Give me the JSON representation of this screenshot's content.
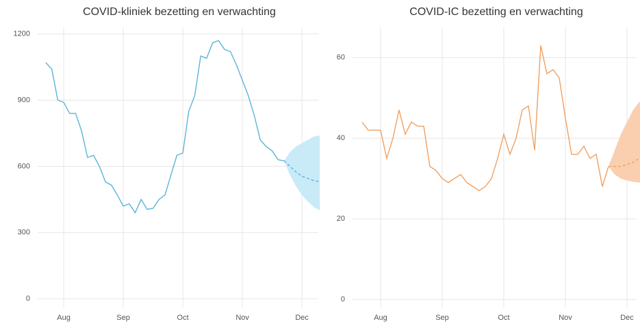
{
  "chart_data": [
    {
      "type": "line",
      "title": "COVID-kliniek bezetting en verwachting",
      "categories": [
        null,
        null,
        null,
        "Aug",
        null,
        null,
        null,
        null,
        null,
        null,
        null,
        null,
        null,
        "Sep",
        null,
        null,
        null,
        null,
        null,
        null,
        null,
        null,
        null,
        "Oct",
        null,
        null,
        null,
        null,
        null,
        null,
        null,
        null,
        null,
        "Nov",
        null,
        null,
        null,
        null,
        null,
        null,
        null,
        null,
        null,
        "Dec",
        null,
        null,
        null
      ],
      "series": [
        {
          "color": "#5ab4d8",
          "dashed": false,
          "values": [
            1070,
            1040,
            900,
            890,
            840,
            840,
            760,
            640,
            650,
            600,
            530,
            515,
            470,
            420,
            430,
            390,
            450,
            405,
            410,
            450,
            470,
            560,
            650,
            660,
            850,
            920,
            1100,
            1090,
            1160,
            1170,
            1130,
            1120,
            1060,
            990,
            920,
            830,
            720,
            690,
            670,
            630,
            625,
            null,
            null,
            null,
            null,
            null,
            null
          ]
        },
        {
          "color": "#5ab4d8",
          "dashed": true,
          "values": [
            null,
            null,
            null,
            null,
            null,
            null,
            null,
            null,
            null,
            null,
            null,
            null,
            null,
            null,
            null,
            null,
            null,
            null,
            null,
            null,
            null,
            null,
            null,
            null,
            null,
            null,
            null,
            null,
            null,
            null,
            null,
            null,
            null,
            null,
            null,
            null,
            null,
            null,
            null,
            null,
            625,
            600,
            575,
            555,
            545,
            535,
            530
          ]
        }
      ],
      "band": {
        "color": "#c8ebf7",
        "lower": [
          null,
          null,
          null,
          null,
          null,
          null,
          null,
          null,
          null,
          null,
          null,
          null,
          null,
          null,
          null,
          null,
          null,
          null,
          null,
          null,
          null,
          null,
          null,
          null,
          null,
          null,
          null,
          null,
          null,
          null,
          null,
          null,
          null,
          null,
          null,
          null,
          null,
          null,
          null,
          null,
          625,
          560,
          510,
          470,
          440,
          415,
          400
        ],
        "upper": [
          null,
          null,
          null,
          null,
          null,
          null,
          null,
          null,
          null,
          null,
          null,
          null,
          null,
          null,
          null,
          null,
          null,
          null,
          null,
          null,
          null,
          null,
          null,
          null,
          null,
          null,
          null,
          null,
          null,
          null,
          null,
          null,
          null,
          null,
          null,
          null,
          null,
          null,
          null,
          null,
          625,
          665,
          690,
          705,
          720,
          735,
          740
        ]
      },
      "ylim": [
        -40,
        1230
      ],
      "yticks": [
        0,
        300,
        600,
        900,
        1200
      ],
      "grid": true
    },
    {
      "type": "line",
      "title": "COVID-IC bezetting en verwachting",
      "categories": [
        null,
        null,
        null,
        "Aug",
        null,
        null,
        null,
        null,
        null,
        null,
        null,
        null,
        null,
        "Sep",
        null,
        null,
        null,
        null,
        null,
        null,
        null,
        null,
        null,
        "Oct",
        null,
        null,
        null,
        null,
        null,
        null,
        null,
        null,
        null,
        "Nov",
        null,
        null,
        null,
        null,
        null,
        null,
        null,
        null,
        null,
        "Dec",
        null,
        null,
        null
      ],
      "series": [
        {
          "color": "#f0a060",
          "dashed": false,
          "values": [
            44,
            42,
            42,
            42,
            35,
            40,
            47,
            41,
            44,
            43,
            43,
            33,
            32,
            30,
            29,
            30,
            31,
            29,
            28,
            27,
            28,
            30,
            35,
            41,
            36,
            40,
            47,
            48,
            37,
            63,
            56,
            57,
            55,
            45,
            36,
            36,
            38,
            35,
            36,
            28,
            33,
            null,
            null,
            null,
            null,
            null,
            null
          ]
        },
        {
          "color": "#f0a060",
          "dashed": true,
          "values": [
            null,
            null,
            null,
            null,
            null,
            null,
            null,
            null,
            null,
            null,
            null,
            null,
            null,
            null,
            null,
            null,
            null,
            null,
            null,
            null,
            null,
            null,
            null,
            null,
            null,
            null,
            null,
            null,
            null,
            null,
            null,
            null,
            null,
            null,
            null,
            null,
            null,
            null,
            null,
            null,
            33,
            33,
            33,
            33.5,
            34,
            35,
            36
          ]
        }
      ],
      "band": {
        "color": "#f9cfaf",
        "lower": [
          null,
          null,
          null,
          null,
          null,
          null,
          null,
          null,
          null,
          null,
          null,
          null,
          null,
          null,
          null,
          null,
          null,
          null,
          null,
          null,
          null,
          null,
          null,
          null,
          null,
          null,
          null,
          null,
          null,
          null,
          null,
          null,
          null,
          null,
          null,
          null,
          null,
          null,
          null,
          null,
          33,
          31,
          30,
          29.5,
          29.2,
          29,
          29
        ],
        "upper": [
          null,
          null,
          null,
          null,
          null,
          null,
          null,
          null,
          null,
          null,
          null,
          null,
          null,
          null,
          null,
          null,
          null,
          null,
          null,
          null,
          null,
          null,
          null,
          null,
          null,
          null,
          null,
          null,
          null,
          null,
          null,
          null,
          null,
          null,
          null,
          null,
          null,
          null,
          null,
          null,
          33,
          37,
          41,
          44,
          47,
          49,
          50
        ]
      },
      "ylim": [
        -2,
        67.5
      ],
      "yticks": [
        0,
        20,
        40,
        60
      ],
      "grid": true
    }
  ]
}
